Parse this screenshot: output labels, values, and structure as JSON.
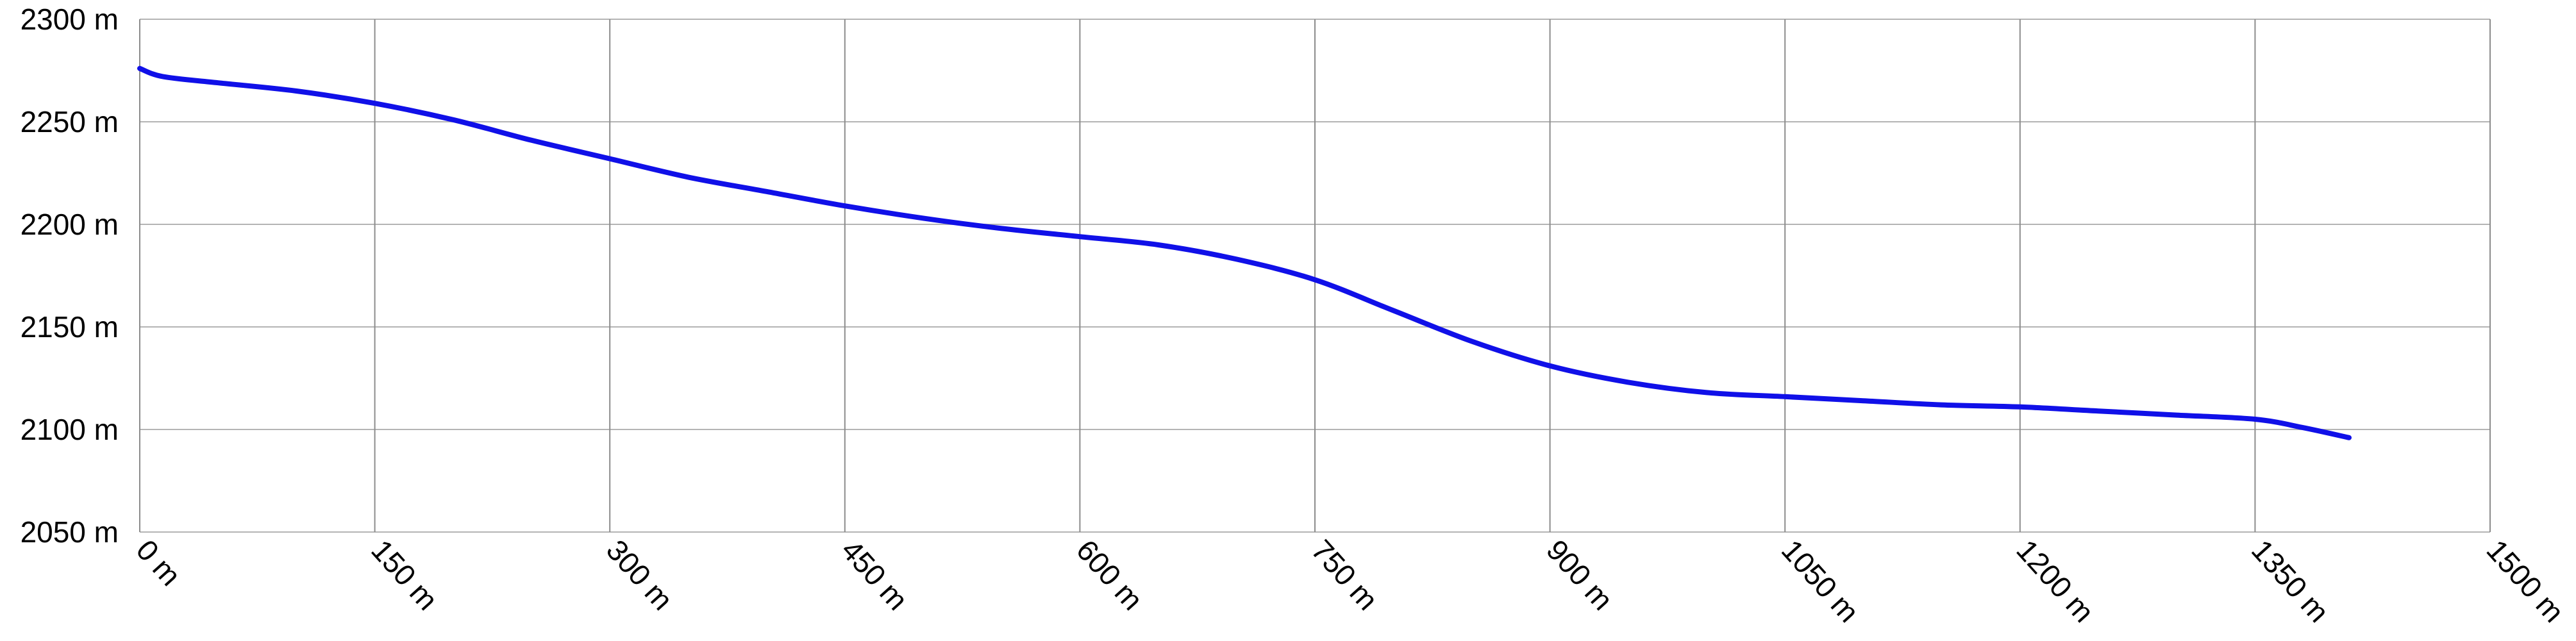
{
  "chart_data": {
    "type": "line",
    "title": "",
    "xlabel": "",
    "ylabel": "",
    "grid": true,
    "legend": "none",
    "xlim": [
      0,
      1500
    ],
    "ylim": [
      2050,
      2300
    ],
    "x_ticks": [
      0,
      150,
      300,
      450,
      600,
      750,
      900,
      1050,
      1200,
      1350,
      1500
    ],
    "x_tick_labels": [
      "0 m",
      "150 m",
      "300 m",
      "450 m",
      "600 m",
      "750 m",
      "900 m",
      "1050 m",
      "1200 m",
      "1350 m",
      "1500 m"
    ],
    "y_ticks": [
      2050,
      2100,
      2150,
      2200,
      2250,
      2300
    ],
    "y_tick_labels": [
      "2050 m",
      "2100 m",
      "2150 m",
      "2200 m",
      "2250 m",
      "2300 m"
    ],
    "series": [
      {
        "color": "#1010e8",
        "x": [
          0,
          15,
          50,
          100,
          150,
          200,
          250,
          300,
          350,
          400,
          450,
          500,
          550,
          600,
          650,
          700,
          750,
          800,
          850,
          900,
          950,
          1000,
          1050,
          1100,
          1150,
          1200,
          1250,
          1300,
          1350,
          1380,
          1410
        ],
        "y": [
          2276,
          2272,
          2269,
          2265,
          2259,
          2251,
          2241,
          2232,
          2223,
          2216,
          2209,
          2203,
          2198,
          2194,
          2190,
          2183,
          2173,
          2158,
          2143,
          2131,
          2123,
          2118,
          2116,
          2114,
          2112,
          2111,
          2109,
          2107,
          2105,
          2101,
          2096
        ]
      }
    ]
  }
}
